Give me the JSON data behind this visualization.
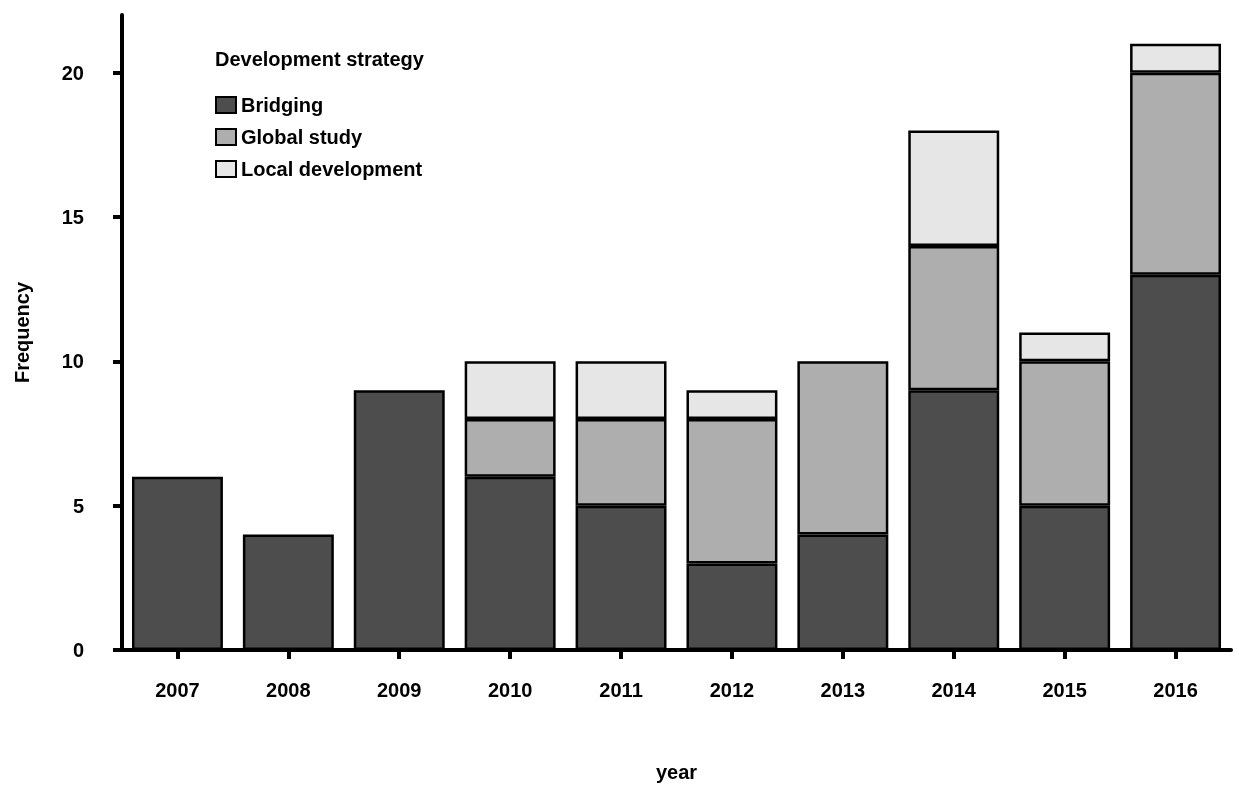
{
  "chart_data": {
    "type": "bar",
    "stacked": true,
    "xlabel": "year",
    "ylabel": "Frequency",
    "legend_title": "Development strategy",
    "legend": "top left",
    "grid": false,
    "categories": [
      "2007",
      "2008",
      "2009",
      "2010",
      "2011",
      "2012",
      "2013",
      "2014",
      "2015",
      "2016"
    ],
    "series": [
      {
        "name": "Bridging",
        "color": "#4d4d4d",
        "values": [
          6,
          4,
          9,
          6,
          5,
          3,
          4,
          9,
          5,
          13
        ]
      },
      {
        "name": "Global study",
        "color": "#aeaeae",
        "values": [
          0,
          0,
          0,
          2,
          3,
          5,
          6,
          5,
          5,
          7
        ]
      },
      {
        "name": "Local development",
        "color": "#e6e6e6",
        "values": [
          0,
          0,
          0,
          2,
          2,
          1,
          0,
          4,
          1,
          1
        ]
      }
    ],
    "ylim": [
      0,
      22
    ],
    "yticks": [
      0,
      5,
      10,
      15,
      20
    ]
  }
}
